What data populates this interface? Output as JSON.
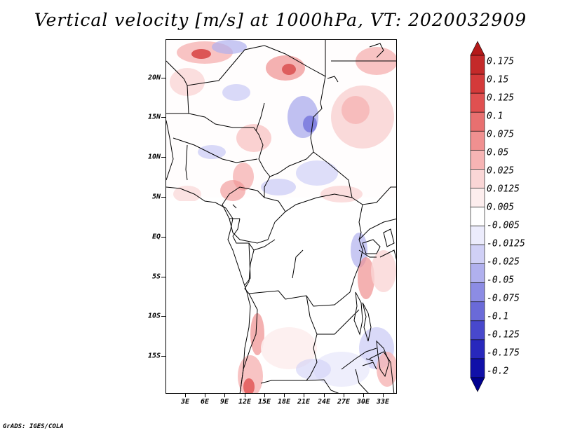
{
  "title": "Vertical velocity [m/s] at 1000hPa, VT: 2020032909",
  "map": {
    "lat_labels": [
      "20N",
      "15N",
      "10N",
      "5N",
      "EQ",
      "5S",
      "10S",
      "15S"
    ],
    "lon_labels": [
      "3E",
      "6E",
      "9E",
      "12E",
      "15E",
      "18E",
      "21E",
      "24E",
      "27E",
      "30E",
      "33E"
    ]
  },
  "colorbar": {
    "labels": [
      "0.175",
      "0.15",
      "0.125",
      "0.1",
      "0.075",
      "0.05",
      "0.025",
      "0.0125",
      "0.005",
      "-0.005",
      "-0.0125",
      "-0.025",
      "-0.05",
      "-0.075",
      "-0.1",
      "-0.125",
      "-0.175",
      "-0.2"
    ],
    "colors": [
      "#b41a1a",
      "#c42a2a",
      "#d43a3a",
      "#e05050",
      "#e87070",
      "#f09090",
      "#f6b4b4",
      "#fad6d6",
      "#fdeeee",
      "#ffffff",
      "#ececfc",
      "#d0d0f6",
      "#b0b0ee",
      "#8c8ce4",
      "#6a6ad8",
      "#4848cc",
      "#2828bc",
      "#1010a8",
      "#000090"
    ]
  },
  "credit": "GrADS: IGES/COLA"
}
